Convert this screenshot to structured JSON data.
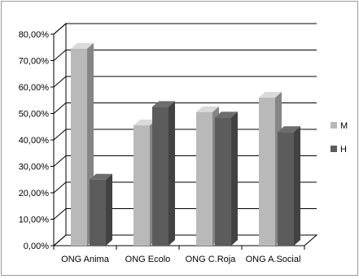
{
  "chart_data": {
    "type": "bar",
    "title": "",
    "xlabel": "",
    "ylabel": "",
    "categories": [
      "ONG Anima",
      "ONG Ecolo",
      "ONG C.Roja",
      "ONG A.Social"
    ],
    "series": [
      {
        "name": "M",
        "values": [
          74.5,
          45.5,
          50.5,
          56
        ],
        "color": "#b9b9b9"
      },
      {
        "name": "H",
        "values": [
          25,
          52.5,
          48.5,
          43
        ],
        "color": "#5c5c5c"
      }
    ],
    "ylim": [
      0,
      80
    ],
    "yticks": [
      "0,00%",
      "10,00%",
      "20,00%",
      "30,00%",
      "40,00%",
      "50,00%",
      "60,00%",
      "70,00%",
      "80,00%"
    ],
    "grid": true,
    "legend_position": "right",
    "style": "3d-clustered-column"
  }
}
